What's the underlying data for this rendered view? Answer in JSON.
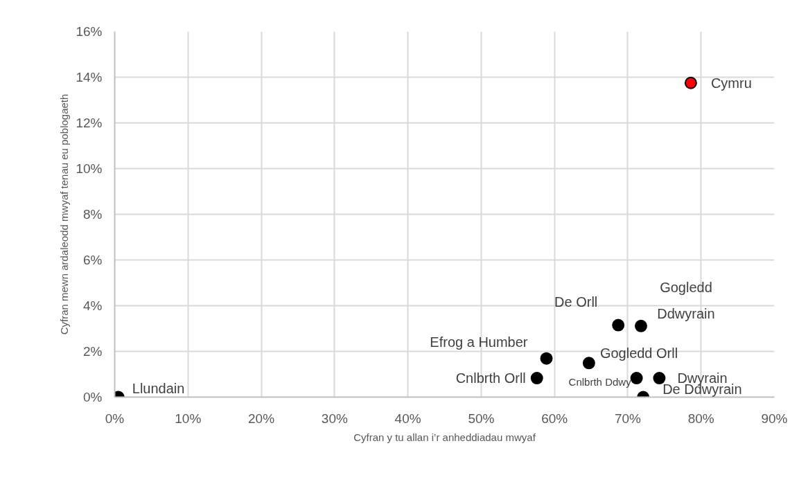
{
  "chart_data": {
    "type": "scatter",
    "xlabel": "Cyfran y tu allan i’r anheddiadau mwyaf",
    "ylabel": "Cyfran mewn ardaleodd mwyaf tenau eu poblogaeth",
    "x": [
      0.5,
      57.6,
      58.9,
      64.7,
      68.7,
      71.8,
      71.2,
      74.3,
      72.1,
      78.6
    ],
    "values": [
      0,
      0.83,
      1.69,
      1.49,
      3.15,
      3.11,
      0.83,
      0.83,
      0,
      13.75
    ],
    "colors": [
      "#000000",
      "#000000",
      "#000000",
      "#000000",
      "#000000",
      "#000000",
      "#000000",
      "#000000",
      "#000000",
      "#ff0000"
    ],
    "marker": "circle",
    "annotations": [
      {
        "text": "Llundain",
        "x": 0.5,
        "y": 0
      },
      {
        "text": "Cnlbrth Orll",
        "x": 57.6,
        "y": 0.83
      },
      {
        "text": "Efrog a Humber",
        "x": 58.9,
        "y": 1.69
      },
      {
        "text": "Gogledd Orll",
        "x": 64.7,
        "y": 1.49
      },
      {
        "text": "De Orll",
        "x": 68.7,
        "y": 3.15
      },
      {
        "text": "Gogledd Ddwyrain",
        "x": 71.8,
        "y": 3.11
      },
      {
        "text": "Cnlbrth Ddwy",
        "x": 71.2,
        "y": 0.83
      },
      {
        "text": "Dwyrain",
        "x": 74.3,
        "y": 0.83
      },
      {
        "text": "De Ddwyrain",
        "x": 72.1,
        "y": 0
      },
      {
        "text": "Cymru",
        "x": 78.6,
        "y": 13.75
      }
    ],
    "xlim": [
      0,
      90
    ],
    "ylim": [
      0,
      16
    ],
    "xticks": [
      {
        "value": 0,
        "label": "0%"
      },
      {
        "value": 10,
        "label": "10%"
      },
      {
        "value": 20,
        "label": "20%"
      },
      {
        "value": 30,
        "label": "30%"
      },
      {
        "value": 40,
        "label": "40%"
      },
      {
        "value": 50,
        "label": "50%"
      },
      {
        "value": 60,
        "label": "60%"
      },
      {
        "value": 70,
        "label": "70%"
      },
      {
        "value": 80,
        "label": "80%"
      },
      {
        "value": 90,
        "label": "90%"
      }
    ],
    "yticks": [
      {
        "value": 0,
        "label": "0%"
      },
      {
        "value": 2,
        "label": "2%"
      },
      {
        "value": 4,
        "label": "4%"
      },
      {
        "value": 6,
        "label": "6%"
      },
      {
        "value": 8,
        "label": "8%"
      },
      {
        "value": 10,
        "label": "10%"
      },
      {
        "value": 12,
        "label": "12%"
      },
      {
        "value": 14,
        "label": "14%"
      },
      {
        "value": 16,
        "label": "16%"
      }
    ],
    "grid": true
  }
}
